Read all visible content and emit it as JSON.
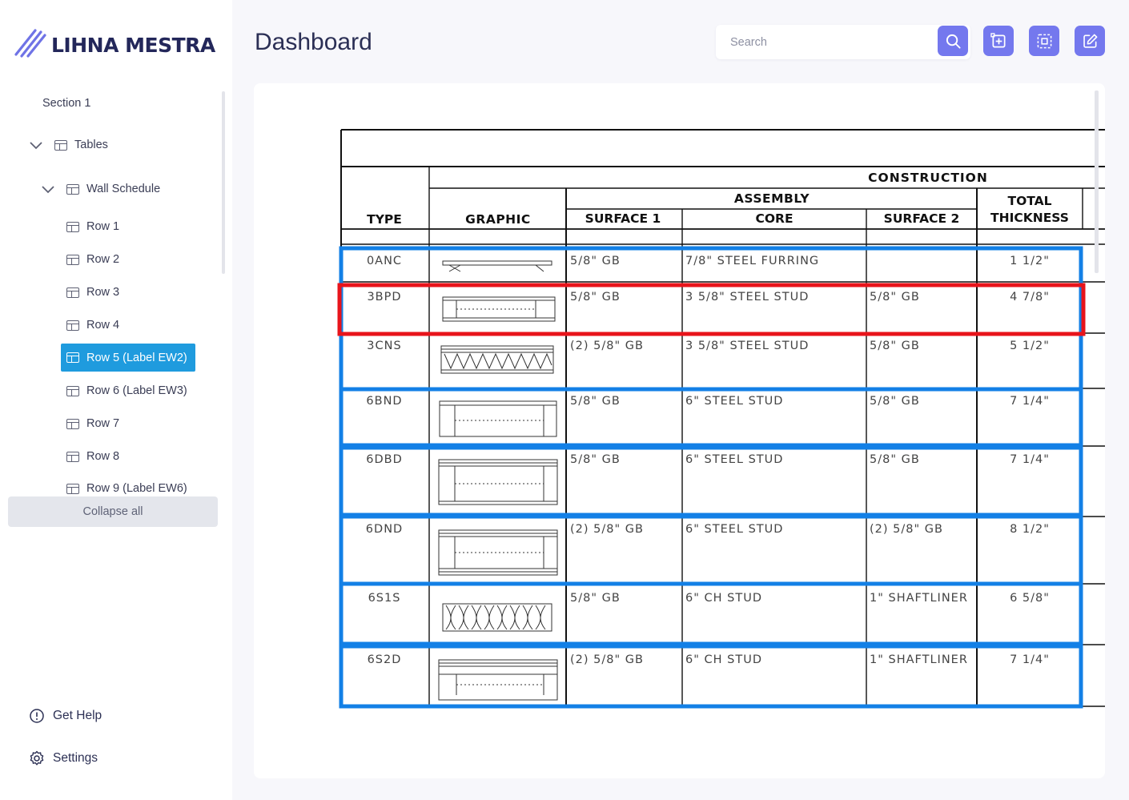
{
  "app": {
    "brand": "LIHNA MESTRA",
    "page_title": "Dashboard",
    "accent_color": "#7478ee",
    "active_color": "#1f9bde"
  },
  "search": {
    "placeholder": "Search",
    "value": ""
  },
  "toolbar": {
    "icons": [
      "search-icon",
      "add-box-icon",
      "select-region-icon",
      "edit-icon"
    ]
  },
  "sidebar": {
    "section_label": "Section 1",
    "tables_label": "Tables",
    "schedule_label": "Wall Schedule",
    "rows": [
      "Row 1",
      "Row 2",
      "Row 3",
      "Row 4",
      "Row 5 (Label EW2)",
      "Row 6 (Label EW3)",
      "Row 7",
      "Row 8",
      "Row 9 (Label EW6)"
    ],
    "active_row": "Row 5 (Label EW2)",
    "collapse_label": "Collapse all",
    "help_label": "Get Help",
    "settings_label": "Settings"
  },
  "document": {
    "headers": {
      "type": "TYPE",
      "graphic": "GRAPHIC",
      "construction": "CONSTRUCTION",
      "assembly": "ASSEMBLY",
      "surface1": "SURFACE 1",
      "core": "CORE",
      "surface2": "SURFACE 2",
      "total_1": "TOTAL",
      "total_2": "THICKNESS"
    },
    "rows": [
      {
        "type": "0ANC",
        "surface1": "5/8\" GB",
        "core": "7/8\" STEEL FURRING",
        "surface2": "",
        "total": "1 1/2\""
      },
      {
        "type": "3BPD",
        "surface1": "5/8\" GB",
        "core": "3 5/8\" STEEL STUD",
        "surface2": "5/8\" GB",
        "total": "4 7/8\""
      },
      {
        "type": "3CNS",
        "surface1": "(2) 5/8\" GB",
        "core": "3 5/8\" STEEL STUD",
        "surface2": "5/8\" GB",
        "total": "5 1/2\""
      },
      {
        "type": "6BND",
        "surface1": "5/8\" GB",
        "core": "6\" STEEL STUD",
        "surface2": "5/8\" GB",
        "total": "7 1/4\""
      },
      {
        "type": "6DBD",
        "surface1": "5/8\" GB",
        "core": "6\" STEEL STUD",
        "surface2": "5/8\" GB",
        "total": "7 1/4\""
      },
      {
        "type": "6DND",
        "surface1": "(2) 5/8\" GB",
        "core": "6\" STEEL STUD",
        "surface2": "(2) 5/8\" GB",
        "total": "8 1/2\""
      },
      {
        "type": "6S1S",
        "surface1": "5/8\" GB",
        "core": "6\" CH STUD",
        "surface2": "1\" SHAFTLINER",
        "total": "6 5/8\""
      },
      {
        "type": "6S2D",
        "surface1": "(2) 5/8\" GB",
        "core": "6\" CH STUD",
        "surface2": "1\" SHAFTLINER",
        "total": "7 1/4\""
      }
    ],
    "highlight_color": "#e8141b",
    "selection_color": "#1380e6"
  }
}
